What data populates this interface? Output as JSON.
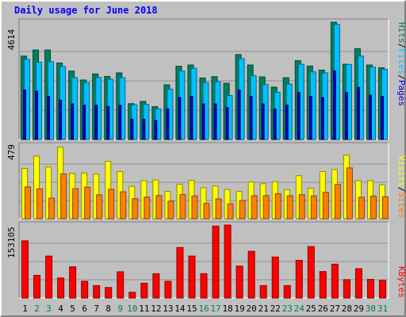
{
  "chart_data": {
    "type": "bar",
    "title": "Daily usage for June 2018",
    "categories": [
      "1",
      "2",
      "3",
      "4",
      "5",
      "6",
      "7",
      "8",
      "9",
      "10",
      "11",
      "12",
      "13",
      "14",
      "15",
      "16",
      "17",
      "18",
      "19",
      "20",
      "21",
      "22",
      "23",
      "24",
      "25",
      "26",
      "27",
      "28",
      "29",
      "30",
      "31"
    ],
    "weekend_days": [
      "2",
      "3",
      "9",
      "10",
      "16",
      "17",
      "23",
      "24",
      "30",
      "31"
    ],
    "panels": [
      {
        "ylabel_parts": [
          "Pages",
          "Files",
          "Hits"
        ],
        "ymax_label": "4614",
        "ylim": [
          0,
          4614
        ],
        "series": [
          {
            "name": "Hits",
            "color": "#00805c",
            "values": [
              3280,
              3520,
              3520,
              3010,
              2690,
              2340,
              2580,
              2480,
              2620,
              1410,
              1500,
              1290,
              2150,
              2880,
              2930,
              2420,
              2470,
              2210,
              3340,
              2930,
              2460,
              2060,
              2430,
              3100,
              2890,
              2730,
              4614,
              2960,
              3570,
              2930,
              2820
            ]
          },
          {
            "name": "Files",
            "color": "#00c0ff",
            "values": [
              3150,
              3040,
              3060,
              2870,
              2440,
              2240,
              2440,
              2370,
              2430,
              1370,
              1380,
              1200,
              1980,
              2690,
              2800,
              2240,
              2270,
              1730,
              3180,
              2510,
              2160,
              1860,
              2180,
              2960,
              2660,
              2620,
              4530,
              2950,
              3280,
              2850,
              2760
            ]
          },
          {
            "name": "Pages",
            "color": "#0000cc",
            "values": [
              1950,
              1900,
              1700,
              1550,
              1400,
              1350,
              1350,
              1300,
              1350,
              800,
              800,
              750,
              1200,
              1650,
              1700,
              1400,
              1400,
              1250,
              1950,
              1700,
              1400,
              1200,
              1350,
              1850,
              1700,
              1650,
              2700,
              1850,
              2050,
              1750,
              1700
            ]
          }
        ]
      },
      {
        "ylabel_parts": [
          "Sites",
          "Visits"
        ],
        "ymax_label": "479",
        "ylim": [
          0,
          479
        ],
        "series": [
          {
            "name": "Visits",
            "color": "#ffff00",
            "values": [
              330,
              411,
              340,
              470,
              297,
              300,
              293,
              377,
              310,
              213,
              250,
              255,
              180,
              227,
              253,
              203,
              215,
              192,
              180,
              242,
              230,
              243,
              191,
              283,
              200,
              310,
              323,
              417,
              250,
              250,
              223
            ]
          },
          {
            "name": "Sites",
            "color": "#ff8000",
            "values": [
              209,
              196,
              135,
              295,
              197,
              207,
              157,
              194,
              177,
              132,
              142,
              152,
              116,
              159,
              150,
              101,
              130,
              98,
              120,
              151,
              152,
              164,
              151,
              158,
              150,
              173,
              225,
              334,
              141,
              149,
              145
            ]
          }
        ]
      },
      {
        "ylabel_parts": [
          "KBytes"
        ],
        "ymax_label": "153105",
        "ylim": [
          0,
          153105
        ],
        "series": [
          {
            "name": "KBytes",
            "color": "#ff0000",
            "values": [
              120000,
              47500,
              88000,
              42000,
              65500,
              35000,
              26000,
              22000,
              55000,
              12000,
              31000,
              51000,
              35000,
              106000,
              88000,
              51000,
              151000,
              153105,
              67000,
              98000,
              26000,
              86000,
              26000,
              79000,
              108000,
              55500,
              71000,
              38500,
              61500,
              39000,
              37000
            ]
          }
        ]
      }
    ]
  }
}
